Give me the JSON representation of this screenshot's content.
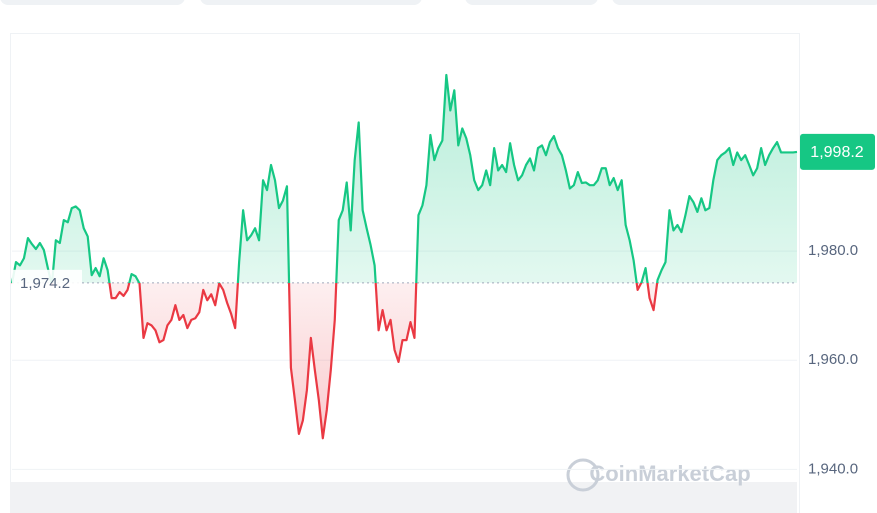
{
  "chart_data": {
    "type": "line",
    "color_up": "#16c784",
    "color_down": "#ea3943",
    "ylim": [
      1932,
      2020
    ],
    "yticks": [
      {
        "value": 1940,
        "label": "1,940.0"
      },
      {
        "value": 1960,
        "label": "1,960.0"
      },
      {
        "value": 1980,
        "label": "1,980.0"
      }
    ],
    "grid": true,
    "baseline": {
      "value": 1974.2,
      "label": "1,974.2"
    },
    "last_price": {
      "value": 1998.2,
      "label": "1,998.2"
    },
    "watermark": "CoinMarketCap",
    "values": [
      1974.1,
      1978.0,
      1977.4,
      1978.7,
      1982.4,
      1981.3,
      1980.4,
      1981.5,
      1980.2,
      1976.9,
      1973.8,
      1982.0,
      1981.5,
      1985.7,
      1985.3,
      1987.9,
      1988.2,
      1987.5,
      1984.2,
      1982.7,
      1975.6,
      1976.9,
      1975.4,
      1978.7,
      1976.5,
      1971.4,
      1971.4,
      1972.5,
      1971.8,
      1972.9,
      1975.8,
      1975.4,
      1974.1,
      1964.1,
      1966.8,
      1966.4,
      1965.5,
      1963.3,
      1963.7,
      1966.4,
      1967.4,
      1970.1,
      1967.4,
      1968.3,
      1965.9,
      1967.4,
      1967.7,
      1968.8,
      1972.9,
      1971.0,
      1972.1,
      1970.1,
      1974.1,
      1972.9,
      1970.5,
      1968.5,
      1965.9,
      1978.0,
      1987.5,
      1982.0,
      1982.9,
      1984.2,
      1982.0,
      1993.0,
      1991.2,
      1995.8,
      1993.0,
      1987.9,
      1989.3,
      1991.9,
      1958.6,
      1952.7,
      1946.5,
      1949.0,
      1954.5,
      1964.1,
      1958.2,
      1952.7,
      1945.7,
      1950.9,
      1958.2,
      1967.4,
      1985.7,
      1987.5,
      1992.6,
      1983.8,
      1996.7,
      2003.6,
      1987.5,
      1984.2,
      1981.1,
      1977.4,
      1965.5,
      1969.2,
      1965.5,
      1967.4,
      1961.9,
      1959.7,
      1963.7,
      1963.7,
      1967.0,
      1964.1,
      1986.6,
      1988.4,
      1992.1,
      2001.3,
      1996.7,
      1998.9,
      2000.3,
      2012.3,
      2005.8,
      2009.5,
      1999.4,
      2002.5,
      2000.7,
      1997.6,
      1993.0,
      1991.2,
      1992.1,
      1994.8,
      1992.1,
      1998.9,
      1994.8,
      1995.8,
      1994.5,
      1999.8,
      1995.8,
      1993.0,
      1993.9,
      1995.8,
      1997.0,
      1994.8,
      1998.9,
      1999.4,
      1997.6,
      2000.0,
      2001.1,
      1998.9,
      1997.6,
      1994.8,
      1991.5,
      1992.1,
      1994.5,
      1992.5,
      1992.6,
      1992.1,
      1992.1,
      1993.0,
      1995.2,
      1995.2,
      1992.1,
      1993.4,
      1991.2,
      1993.0,
      1984.8,
      1982.0,
      1978.3,
      1972.9,
      1974.3,
      1976.9,
      1971.4,
      1969.2,
      1974.7,
      1976.5,
      1978.0,
      1987.5,
      1983.8,
      1984.8,
      1983.5,
      1986.6,
      1990.1,
      1989.0,
      1987.2,
      1989.7,
      1987.5,
      1987.9,
      1993.0,
      1996.7,
      1997.6,
      1998.1,
      1998.9,
      1995.8,
      1998.1,
      1996.7,
      1997.6,
      1995.8,
      1993.9,
      1995.2,
      1998.9,
      1995.8,
      1997.6,
      1998.9,
      2000.0,
      1998.1,
      1998.1,
      1998.1,
      1998.1,
      1998.2
    ]
  }
}
